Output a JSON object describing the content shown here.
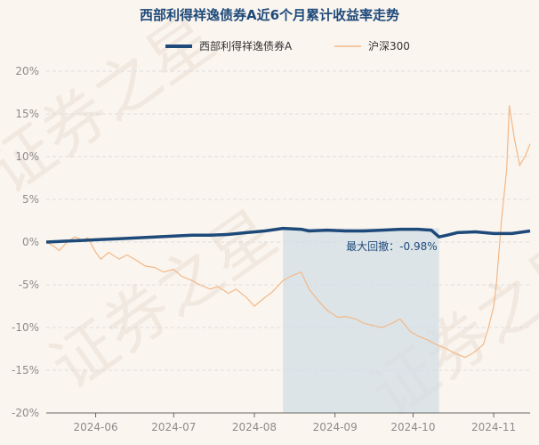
{
  "colors": {
    "background": "#fbf5ef",
    "title": "#1e4a7a",
    "fund_line": "#1e4a7a",
    "index_line": "#f2b887",
    "drawdown_band": "#d3dde6",
    "grid": "#dddddd",
    "axis": "#666666",
    "annotation": "#1e4a7a"
  },
  "chart_data": {
    "type": "line",
    "title": "西部利得祥逸债券A近6个月累计收益率走势",
    "xlabel": "",
    "ylabel": "",
    "x_ticks": [
      "2024-06",
      "2024-07",
      "2024-08",
      "2024-09",
      "2024-10",
      "2024-11"
    ],
    "x_range": [
      "2024-05-13",
      "2024-11-15"
    ],
    "y_range": [
      -20,
      20
    ],
    "y_ticks": [
      20,
      15,
      10,
      5,
      0,
      -5,
      -10,
      -15,
      -20
    ],
    "y_tick_labels": [
      "20%",
      "15%",
      "10%",
      "5%",
      "0%",
      "-5%",
      "-10%",
      "-15%",
      "-20%"
    ],
    "grid": "horizontal dashed",
    "legend_position": "top",
    "series": [
      {
        "name": "西部利得祥逸债券A",
        "points": [
          [
            "2024-05-13",
            0.0
          ],
          [
            "2024-05-20",
            0.1
          ],
          [
            "2024-05-27",
            0.2
          ],
          [
            "2024-06-03",
            0.3
          ],
          [
            "2024-06-10",
            0.4
          ],
          [
            "2024-06-17",
            0.5
          ],
          [
            "2024-06-24",
            0.6
          ],
          [
            "2024-07-01",
            0.7
          ],
          [
            "2024-07-08",
            0.8
          ],
          [
            "2024-07-15",
            0.8
          ],
          [
            "2024-07-22",
            0.9
          ],
          [
            "2024-07-29",
            1.1
          ],
          [
            "2024-08-05",
            1.3
          ],
          [
            "2024-08-12",
            1.6
          ],
          [
            "2024-08-19",
            1.5
          ],
          [
            "2024-08-22",
            1.3
          ],
          [
            "2024-08-29",
            1.4
          ],
          [
            "2024-09-05",
            1.3
          ],
          [
            "2024-09-12",
            1.3
          ],
          [
            "2024-09-19",
            1.4
          ],
          [
            "2024-09-26",
            1.5
          ],
          [
            "2024-10-03",
            1.5
          ],
          [
            "2024-10-08",
            1.4
          ],
          [
            "2024-10-11",
            0.6
          ],
          [
            "2024-10-14",
            0.8
          ],
          [
            "2024-10-18",
            1.1
          ],
          [
            "2024-10-25",
            1.2
          ],
          [
            "2024-11-01",
            1.0
          ],
          [
            "2024-11-08",
            1.0
          ],
          [
            "2024-11-15",
            1.3
          ]
        ]
      },
      {
        "name": "沪深300",
        "points": [
          [
            "2024-05-13",
            0.0
          ],
          [
            "2024-05-16",
            -0.5
          ],
          [
            "2024-05-18",
            -1.0
          ],
          [
            "2024-05-21",
            0.0
          ],
          [
            "2024-05-24",
            0.6
          ],
          [
            "2024-05-27",
            0.2
          ],
          [
            "2024-05-29",
            0.5
          ],
          [
            "2024-06-01",
            -1.2
          ],
          [
            "2024-06-03",
            -2.0
          ],
          [
            "2024-06-06",
            -1.2
          ],
          [
            "2024-06-10",
            -2.0
          ],
          [
            "2024-06-13",
            -1.5
          ],
          [
            "2024-06-17",
            -2.2
          ],
          [
            "2024-06-20",
            -2.8
          ],
          [
            "2024-06-24",
            -3.0
          ],
          [
            "2024-06-27",
            -3.5
          ],
          [
            "2024-07-01",
            -3.2
          ],
          [
            "2024-07-04",
            -4.0
          ],
          [
            "2024-07-08",
            -4.5
          ],
          [
            "2024-07-11",
            -5.0
          ],
          [
            "2024-07-15",
            -5.5
          ],
          [
            "2024-07-18",
            -5.2
          ],
          [
            "2024-07-22",
            -6.0
          ],
          [
            "2024-07-25",
            -5.5
          ],
          [
            "2024-07-29",
            -6.5
          ],
          [
            "2024-08-01",
            -7.5
          ],
          [
            "2024-08-05",
            -6.5
          ],
          [
            "2024-08-08",
            -5.8
          ],
          [
            "2024-08-12",
            -4.5
          ],
          [
            "2024-08-15",
            -4.0
          ],
          [
            "2024-08-19",
            -3.5
          ],
          [
            "2024-08-22",
            -5.5
          ],
          [
            "2024-08-26",
            -7.0
          ],
          [
            "2024-08-29",
            -8.0
          ],
          [
            "2024-09-02",
            -8.8
          ],
          [
            "2024-09-05",
            -8.7
          ],
          [
            "2024-09-09",
            -9.0
          ],
          [
            "2024-09-12",
            -9.5
          ],
          [
            "2024-09-16",
            -9.8
          ],
          [
            "2024-09-19",
            -10.0
          ],
          [
            "2024-09-23",
            -9.5
          ],
          [
            "2024-09-26",
            -9.0
          ],
          [
            "2024-09-30",
            -10.5
          ],
          [
            "2024-10-03",
            -11.0
          ],
          [
            "2024-10-07",
            -11.5
          ],
          [
            "2024-10-10",
            -12.0
          ],
          [
            "2024-10-14",
            -12.5
          ],
          [
            "2024-10-17",
            -13.0
          ],
          [
            "2024-10-21",
            -13.5
          ],
          [
            "2024-10-24",
            -13.0
          ],
          [
            "2024-10-28",
            -12.0
          ],
          [
            "2024-10-30",
            -10.0
          ],
          [
            "2024-11-01",
            -7.5
          ],
          [
            "2024-11-02",
            -5.0
          ],
          [
            "2024-11-04",
            2.5
          ],
          [
            "2024-11-06",
            8.5
          ],
          [
            "2024-11-07",
            16.0
          ],
          [
            "2024-11-09",
            12.0
          ],
          [
            "2024-11-11",
            9.0
          ],
          [
            "2024-11-13",
            10.0
          ],
          [
            "2024-11-15",
            11.5
          ]
        ]
      }
    ],
    "annotations": [
      {
        "text": "最大回撤：-0.98%",
        "x": "2024-08-12",
        "y": 0.0
      }
    ],
    "shaded_region": {
      "x_start": "2024-08-12",
      "x_end": "2024-10-11"
    }
  },
  "watermark": "证券之星"
}
